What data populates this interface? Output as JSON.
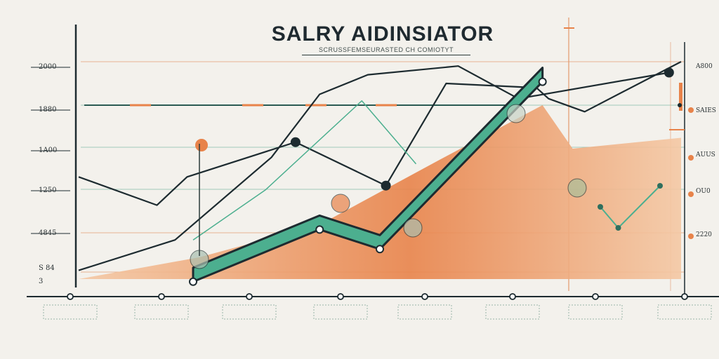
{
  "title": "SALRY AIDINSIATOR",
  "subtitle": "SCRUSSFEMSEURASTED CH COMIOTYT",
  "colors": {
    "background": "#f3f1ec",
    "teal": "#4caf8f",
    "teal_dark": "#2f6f5e",
    "orange": "#e8834a",
    "orange_light": "#f4c8a4",
    "line_dark": "#1d2b30",
    "grid_orange": "#e39a6c",
    "grid_green": "#7fb9a6"
  },
  "chart_data": {
    "type": "line",
    "title": "SALRY AIDINSIATOR",
    "grid": true,
    "y_ticks_left": [
      "2000",
      "1880",
      "1A00",
      "1250",
      "4845",
      "S 84",
      "3"
    ],
    "y_ticks_right": [
      "A800",
      "SAIES",
      "AUUS",
      "OU0",
      "2220"
    ],
    "x_ticks": [
      "",
      "",
      "",
      "",
      "",
      "",
      "",
      ""
    ],
    "ylim": [
      0,
      100
    ],
    "xlim": [
      0,
      100
    ],
    "series": [
      {
        "name": "",
        "color": "#1d2b30",
        "x": [
          0,
          13,
          18,
          36,
          51,
          61,
          76,
          78,
          84,
          100
        ],
        "y": [
          47,
          34,
          47,
          63,
          43,
          90,
          88,
          83,
          77,
          100
        ]
      },
      {
        "name": "",
        "color": "#1d2b30",
        "x": [
          0,
          16,
          32,
          40,
          48,
          63,
          73,
          98
        ],
        "y": [
          4,
          18,
          56,
          85,
          94,
          98,
          83,
          95
        ]
      },
      {
        "name": "",
        "color": "#4caf8f",
        "x": [
          19,
          31,
          47,
          56
        ],
        "y": [
          18,
          41,
          82,
          53
        ]
      }
    ],
    "ribbon": {
      "name": "",
      "color": "#4caf8f",
      "x": [
        19,
        40,
        50,
        77
      ],
      "y": [
        2,
        26,
        17,
        94
      ]
    },
    "area": {
      "name": "",
      "color": "#e8834a",
      "x": [
        0,
        20,
        40,
        60,
        77,
        82,
        100
      ],
      "y": [
        0,
        10,
        25,
        55,
        80,
        60,
        65
      ]
    },
    "mini_series": {
      "name": "",
      "color": "#4caf8f",
      "x": [
        0,
        30,
        100
      ],
      "y": [
        50,
        0,
        100
      ]
    }
  }
}
